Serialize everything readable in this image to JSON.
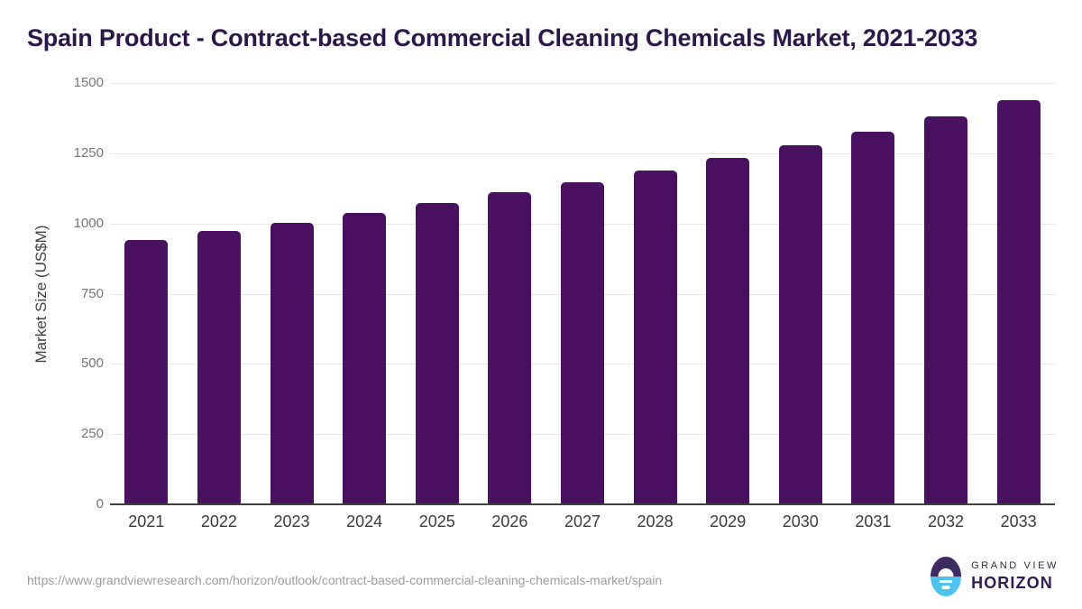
{
  "chart_data": {
    "type": "bar",
    "title": "Spain Product - Contract-based Commercial Cleaning Chemicals Market, 2021-2033",
    "xlabel": "",
    "ylabel": "Market Size (US$M)",
    "categories": [
      "2021",
      "2022",
      "2023",
      "2024",
      "2025",
      "2026",
      "2027",
      "2028",
      "2029",
      "2030",
      "2031",
      "2032",
      "2033"
    ],
    "values": [
      940,
      972,
      1003,
      1038,
      1074,
      1110,
      1148,
      1188,
      1232,
      1278,
      1328,
      1382,
      1438
    ],
    "ylim": [
      0,
      1500
    ],
    "yticks": [
      0,
      250,
      500,
      750,
      1000,
      1250,
      1500
    ],
    "grid": true,
    "legend_position": "none",
    "bar_color_hex": "#49115F"
  },
  "footer": {
    "source_url": "https://www.grandviewresearch.com/horizon/outlook/contract-based-commercial-cleaning-chemicals-market/spain",
    "logo": {
      "line1": "GRAND VIEW",
      "line2": "HORIZON"
    }
  },
  "palette": {
    "title_hex": "#2B1849",
    "bar_hex": "#49115F",
    "gridline_hex": "#E8E8EB",
    "axis_hex": "#3F3F3F",
    "y_tick_hex": "#757575",
    "x_tick_hex": "#3B3B3B",
    "url_hex": "#9E9E9E",
    "logo_purple_hex": "#3E2B63",
    "logo_cyan_hex": "#4FC3F0"
  }
}
